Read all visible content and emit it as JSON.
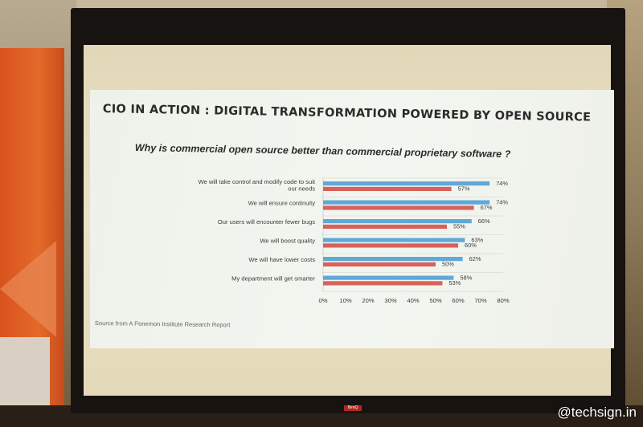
{
  "slide": {
    "title": "CIO IN ACTION : DIGITAL TRANSFORMATION POWERED BY OPEN SOURCE",
    "question": "Why is commercial open source better than commercial proprietary software ?",
    "source": "Source from A Ponemon Institute Research Report"
  },
  "chart_data": {
    "type": "bar",
    "orientation": "horizontal",
    "categories": [
      "We will take control and modify code to suit our needs",
      "We will ensure continuity",
      "Our users will encounter fewer bugs",
      "We will boost quality",
      "We will have lower costs",
      "My department will get smarter"
    ],
    "series": [
      {
        "color": "#5fa8d8",
        "values": [
          74,
          74,
          66,
          63,
          62,
          58
        ]
      },
      {
        "color": "#d8615b",
        "values": [
          57,
          67,
          55,
          60,
          50,
          53
        ]
      }
    ],
    "xlim": [
      0,
      80
    ],
    "xticks": [
      "0%",
      "10%",
      "20%",
      "30%",
      "40%",
      "50%",
      "60%",
      "70%",
      "80%"
    ],
    "value_suffix": "%"
  },
  "watermark": "@techsign.in",
  "brand_tab": "BenQ"
}
